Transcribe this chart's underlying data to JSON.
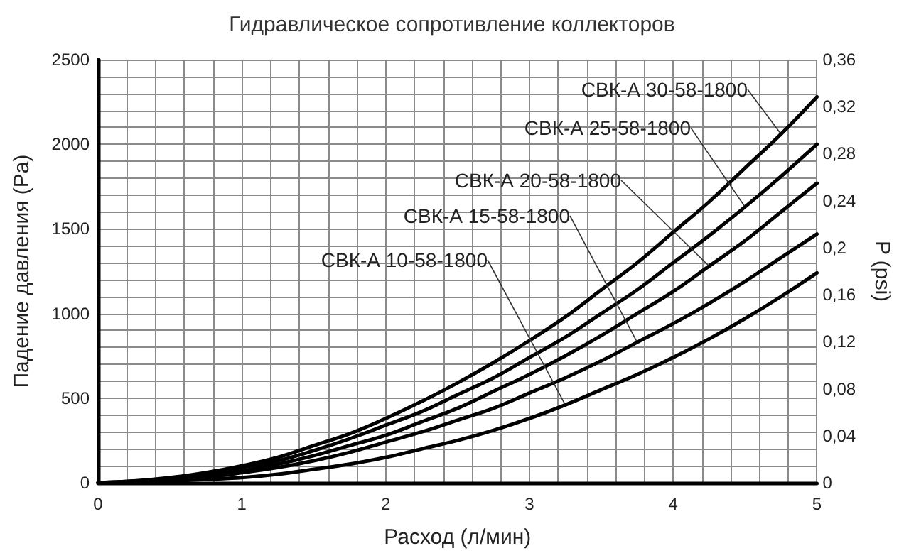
{
  "chart_data": {
    "type": "line",
    "title": "Гидравлическое сопротивление коллекторов",
    "xlabel": "Расход (л/мин)",
    "ylabel": "Падение давления (Pa)",
    "y2label": "P (psi)",
    "x": [
      0,
      0.25,
      0.5,
      0.75,
      1,
      1.25,
      1.5,
      1.75,
      2,
      2.25,
      2.5,
      2.75,
      3,
      3.25,
      3.5,
      3.75,
      4,
      4.25,
      4.5,
      4.75,
      5
    ],
    "series": [
      {
        "name": "СВК-А 30-58-1800",
        "color": "#000000",
        "values": [
          0,
          10,
          30,
          60,
          100,
          150,
          220,
          290,
          380,
          480,
          590,
          710,
          840,
          980,
          1140,
          1300,
          1480,
          1660,
          1860,
          2060,
          2280
        ]
      },
      {
        "name": "СВК-А 25-58-1800",
        "color": "#000000",
        "values": [
          0,
          10,
          20,
          50,
          90,
          130,
          190,
          260,
          340,
          420,
          520,
          620,
          740,
          860,
          1000,
          1140,
          1300,
          1460,
          1630,
          1810,
          2000
        ]
      },
      {
        "name": "СВК-А 20-58-1800",
        "color": "#000000",
        "values": [
          0,
          0,
          20,
          40,
          70,
          110,
          160,
          220,
          280,
          360,
          440,
          540,
          640,
          750,
          870,
          1000,
          1130,
          1280,
          1430,
          1600,
          1770
        ]
      },
      {
        "name": "СВК-А 15-58-1800",
        "color": "#000000",
        "values": [
          0,
          0,
          10,
          30,
          60,
          90,
          130,
          180,
          240,
          300,
          370,
          440,
          530,
          620,
          720,
          830,
          940,
          1060,
          1190,
          1330,
          1470
        ]
      },
      {
        "name": "СВК-А 10-58-1800",
        "color": "#000000",
        "values": [
          0,
          0,
          10,
          20,
          30,
          50,
          80,
          110,
          150,
          200,
          250,
          310,
          380,
          460,
          550,
          640,
          740,
          850,
          970,
          1100,
          1240
        ]
      }
    ],
    "xlim": [
      0,
      5
    ],
    "xticks": [
      0,
      {
        "value": 0.2,
        "label": null
      },
      {
        "value": 0.4,
        "label": null
      },
      {
        "value": 0.6,
        "label": null
      },
      {
        "value": 0.8,
        "label": null
      },
      1,
      {
        "value": 1.2,
        "label": null
      },
      {
        "value": 1.4,
        "label": null
      },
      {
        "value": 1.6,
        "label": null
      },
      {
        "value": 1.8,
        "label": null
      },
      2,
      {
        "value": 2.2,
        "label": null
      },
      {
        "value": 2.4,
        "label": null
      },
      {
        "value": 2.6,
        "label": null
      },
      {
        "value": 2.8,
        "label": null
      },
      3,
      {
        "value": 3.2,
        "label": null
      },
      {
        "value": 3.4,
        "label": null
      },
      {
        "value": 3.6,
        "label": null
      },
      {
        "value": 3.8,
        "label": null
      },
      4,
      {
        "value": 4.2,
        "label": null
      },
      {
        "value": 4.4,
        "label": null
      },
      {
        "value": 4.6,
        "label": null
      },
      {
        "value": 4.8,
        "label": null
      },
      5
    ],
    "ylim": [
      0,
      2500
    ],
    "yticks": [
      0,
      {
        "value": 100,
        "label": null
      },
      {
        "value": 200,
        "label": null
      },
      {
        "value": 300,
        "label": null
      },
      {
        "value": 400,
        "label": null
      },
      500,
      {
        "value": 600,
        "label": null
      },
      {
        "value": 700,
        "label": null
      },
      {
        "value": 800,
        "label": null
      },
      {
        "value": 900,
        "label": null
      },
      1000,
      {
        "value": 1100,
        "label": null
      },
      {
        "value": 1200,
        "label": null
      },
      {
        "value": 1300,
        "label": null
      },
      {
        "value": 1400,
        "label": null
      },
      1500,
      {
        "value": 1600,
        "label": null
      },
      {
        "value": 1700,
        "label": null
      },
      {
        "value": 1800,
        "label": null
      },
      {
        "value": 1900,
        "label": null
      },
      2000,
      {
        "value": 2100,
        "label": null
      },
      {
        "value": 2200,
        "label": null
      },
      {
        "value": 2300,
        "label": null
      },
      {
        "value": 2400,
        "label": null
      },
      2500
    ],
    "y2lim": [
      0,
      0.36
    ],
    "y2ticks": [
      0,
      {
        "value": 0.04,
        "label": "0,04"
      },
      {
        "value": 0.08,
        "label": "0,08"
      },
      {
        "value": 0.12,
        "label": "0,12"
      },
      {
        "value": 0.16,
        "label": "0,16"
      },
      {
        "value": 0.2,
        "label": "0,2"
      },
      {
        "value": 0.24,
        "label": "0,24"
      },
      {
        "value": 0.28,
        "label": "0,28"
      },
      {
        "value": 0.32,
        "label": "0,32"
      },
      {
        "value": 0.36,
        "label": "0,36"
      }
    ],
    "grid": true,
    "marker": "none",
    "line_style": "solid"
  }
}
